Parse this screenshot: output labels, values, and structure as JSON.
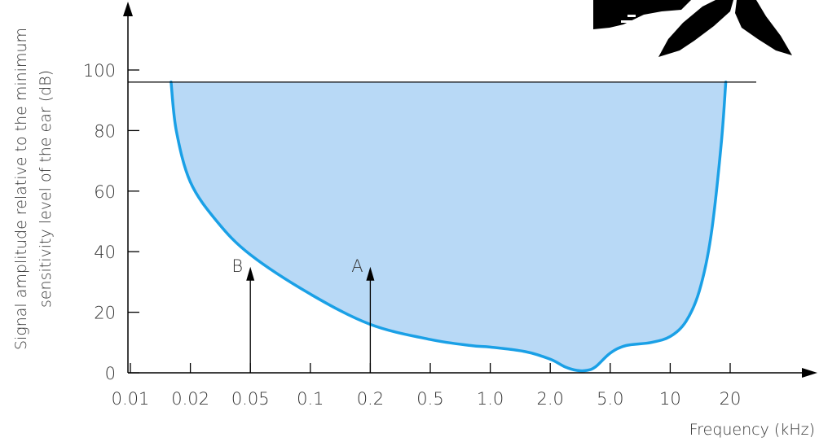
{
  "chart_data": {
    "type": "area",
    "title": "",
    "xlabel": "Frequency (kHz)",
    "ylabel_line1": "Signal amplitude relative to the minimum",
    "ylabel_line2": "sensitivity level of the ear (dB)",
    "x_scale": "log-spaced categories",
    "x_ticks": [
      "0.01",
      "0.02",
      "0.05",
      "0.1",
      "0.2",
      "0.5",
      "1.0",
      "2.0",
      "5.0",
      "10",
      "20"
    ],
    "y_ticks": [
      "0",
      "20",
      "40",
      "60",
      "80",
      "100"
    ],
    "ylim": [
      0,
      100
    ],
    "pain_threshold_db": 96,
    "threshold_curve": {
      "x_khz": [
        0.016,
        0.017,
        0.02,
        0.03,
        0.05,
        0.1,
        0.2,
        0.5,
        0.8,
        1.0,
        1.5,
        2.0,
        2.5,
        3.0,
        3.5,
        4.0,
        5.0,
        6.0,
        8.0,
        10,
        12,
        14,
        16,
        18,
        19
      ],
      "y_db": [
        96,
        80,
        63,
        50,
        39,
        26,
        16,
        11,
        9,
        8.5,
        7,
        4.5,
        2,
        0.8,
        0.8,
        2,
        6.5,
        9,
        10,
        12,
        17,
        27,
        45,
        75,
        96
      ]
    },
    "fill_color": "#b8d9f6",
    "curve_color": "#1aa0e6",
    "markers": [
      {
        "label": "A",
        "x_khz": 0.2,
        "y_db": 35
      },
      {
        "label": "B",
        "x_khz": 0.05,
        "y_db": 35
      }
    ]
  }
}
